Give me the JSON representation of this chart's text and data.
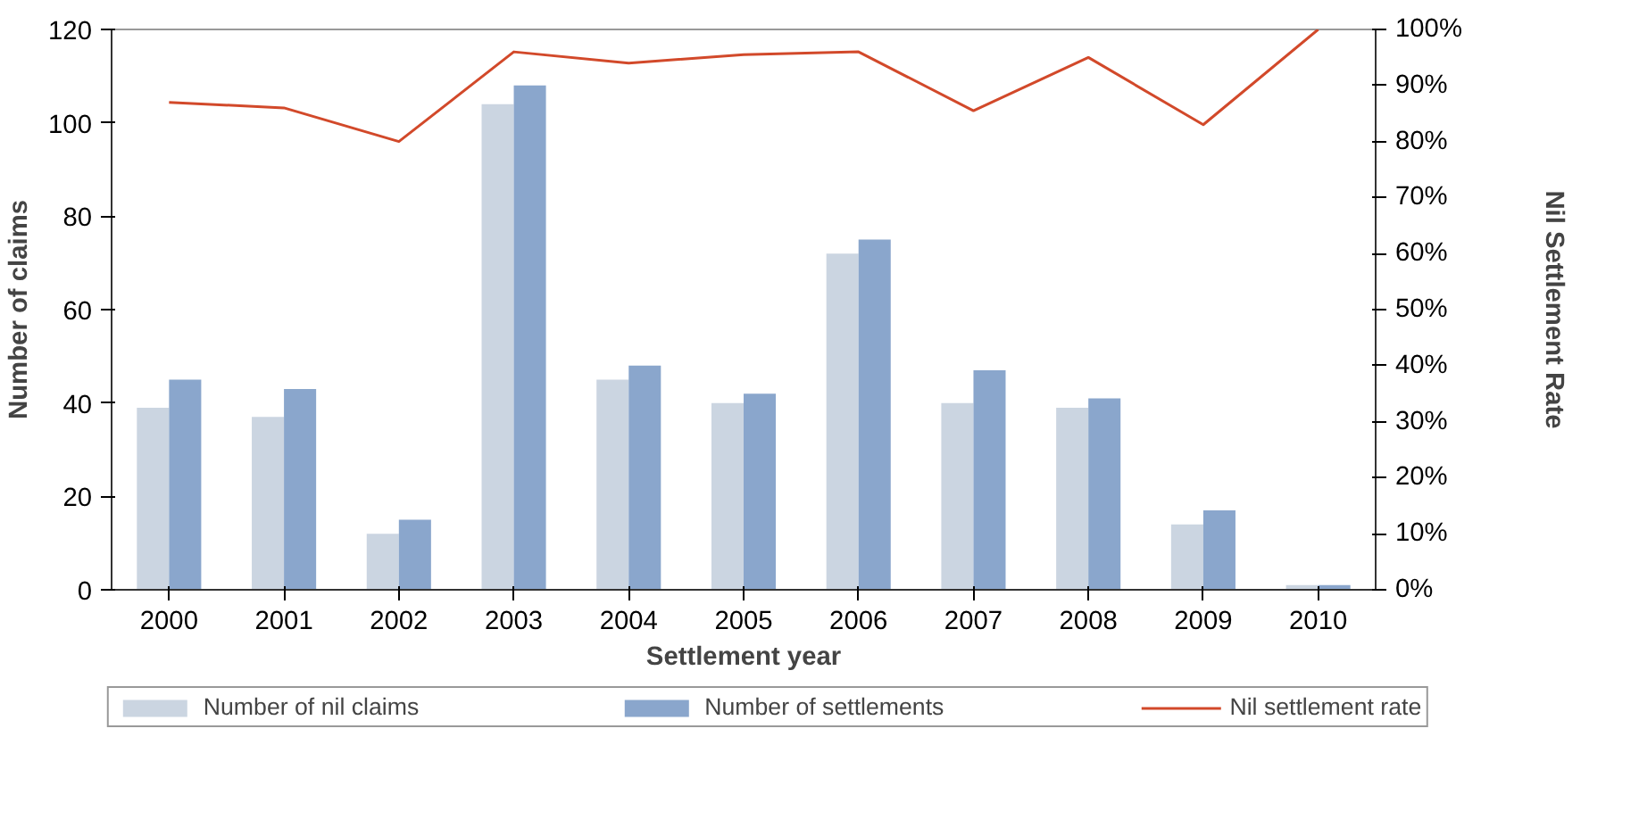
{
  "chart_data": {
    "type": "bar",
    "xlabel": "Settlement year",
    "ylabel": "Number of claims",
    "y2label": "Nil Settlement Rate",
    "categories": [
      "2000",
      "2001",
      "2002",
      "2003",
      "2004",
      "2005",
      "2006",
      "2007",
      "2008",
      "2009",
      "2010"
    ],
    "series": [
      {
        "name": "Number of nil claims",
        "color": "#cbd5e1",
        "values": [
          39,
          37,
          12,
          104,
          45,
          40,
          72,
          40,
          39,
          14,
          1
        ]
      },
      {
        "name": "Number of settlements",
        "color": "#8aa6cc",
        "values": [
          45,
          43,
          15,
          108,
          48,
          42,
          75,
          47,
          41,
          17,
          1
        ]
      },
      {
        "name": "Nil settlement rate",
        "type": "line",
        "axis": "y2",
        "color": "#d2492a",
        "values": [
          87,
          86,
          80,
          96,
          94,
          95.5,
          96,
          85.5,
          95,
          83,
          100
        ]
      }
    ],
    "ylim": [
      0,
      120
    ],
    "yticks": [
      0,
      20,
      40,
      60,
      80,
      100,
      120
    ],
    "y2lim": [
      0,
      100
    ],
    "y2ticks": [
      {
        "value": 0,
        "label": "0%"
      },
      {
        "value": 10,
        "label": "10%"
      },
      {
        "value": 20,
        "label": "20%"
      },
      {
        "value": 30,
        "label": "30%"
      },
      {
        "value": 40,
        "label": "40%"
      },
      {
        "value": 50,
        "label": "50%"
      },
      {
        "value": 60,
        "label": "60%"
      },
      {
        "value": 70,
        "label": "70%"
      },
      {
        "value": 80,
        "label": "80%"
      },
      {
        "value": 90,
        "label": "90%"
      },
      {
        "value": 100,
        "label": "100%"
      }
    ],
    "grid": false,
    "legend": "bottom"
  }
}
